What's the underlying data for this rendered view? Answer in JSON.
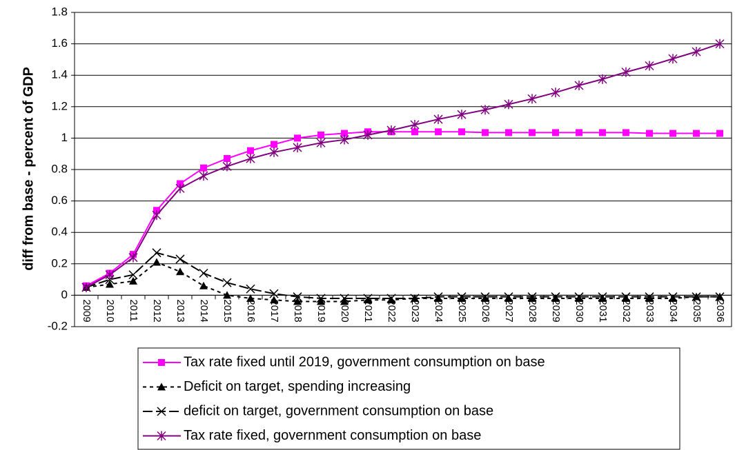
{
  "chart_data": {
    "type": "line",
    "y_label": "diff from base - percent of GDP",
    "categories": [
      "2009",
      "2010",
      "2011",
      "2012",
      "2013",
      "2014",
      "2015",
      "2016",
      "2017",
      "2018",
      "2019",
      "2020",
      "2021",
      "2022",
      "2023",
      "2024",
      "2025",
      "2026",
      "2027",
      "2028",
      "2029",
      "2030",
      "2031",
      "2032",
      "2033",
      "2034",
      "2035",
      "2036"
    ],
    "series": [
      {
        "name": "Tax rate fixed until 2019, government consumption on base",
        "color": "#ff00ff",
        "marker": "square",
        "dash": "solid",
        "values": [
          0.06,
          0.14,
          0.26,
          0.54,
          0.71,
          0.81,
          0.87,
          0.92,
          0.96,
          1.0,
          1.02,
          1.03,
          1.04,
          1.04,
          1.04,
          1.04,
          1.04,
          1.035,
          1.035,
          1.035,
          1.035,
          1.035,
          1.035,
          1.035,
          1.03,
          1.03,
          1.03,
          1.03
        ]
      },
      {
        "name": "Deficit on target, spending increasing",
        "color": "#000000",
        "marker": "triangle",
        "dash": "dashed",
        "values": [
          0.05,
          0.07,
          0.09,
          0.21,
          0.15,
          0.06,
          0.0,
          -0.02,
          -0.03,
          -0.04,
          -0.04,
          -0.04,
          -0.03,
          -0.03,
          -0.02,
          -0.02,
          -0.02,
          -0.02,
          -0.02,
          -0.02,
          -0.02,
          -0.02,
          -0.02,
          -0.02,
          -0.02,
          -0.02,
          -0.01,
          -0.01
        ]
      },
      {
        "name": "deficit on target, government consumption on base",
        "color": "#000000",
        "marker": "x",
        "dash": "longdash",
        "values": [
          0.05,
          0.1,
          0.13,
          0.27,
          0.23,
          0.14,
          0.08,
          0.04,
          0.01,
          -0.01,
          -0.02,
          -0.02,
          -0.02,
          -0.02,
          -0.02,
          -0.01,
          -0.01,
          -0.01,
          -0.01,
          -0.01,
          -0.01,
          -0.01,
          -0.01,
          -0.01,
          -0.01,
          -0.01,
          -0.01,
          -0.01
        ]
      },
      {
        "name": "Tax rate fixed, government consumption on base",
        "color": "#800080",
        "marker": "asterisk",
        "dash": "solid",
        "values": [
          0.05,
          0.13,
          0.24,
          0.51,
          0.68,
          0.76,
          0.82,
          0.87,
          0.91,
          0.94,
          0.97,
          0.99,
          1.02,
          1.05,
          1.085,
          1.12,
          1.15,
          1.18,
          1.215,
          1.25,
          1.29,
          1.335,
          1.375,
          1.42,
          1.46,
          1.505,
          1.55,
          1.6
        ]
      }
    ],
    "ylim": [
      -0.2,
      1.8
    ],
    "yticks": [
      -0.2,
      0,
      0.2,
      0.4,
      0.6,
      0.8,
      1,
      1.2,
      1.4,
      1.6,
      1.8
    ],
    "grid": true
  }
}
